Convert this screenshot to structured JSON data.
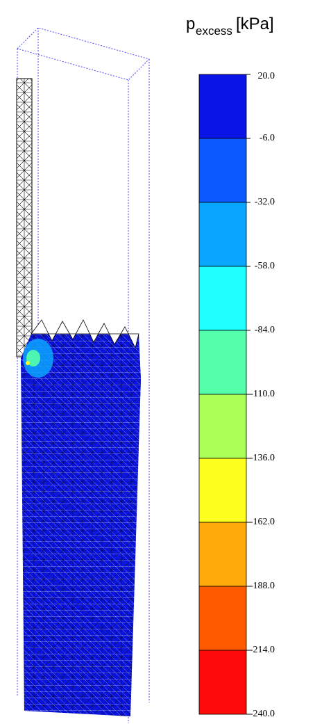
{
  "legend": {
    "title": "p",
    "title_sub": "excess",
    "unit": "[kPa]",
    "levels": [
      {
        "value": 20,
        "label": "20.0"
      },
      {
        "value": -6,
        "label": "-6.0"
      },
      {
        "value": -32,
        "label": "-32.0"
      },
      {
        "value": -58,
        "label": "-58.0"
      },
      {
        "value": -84,
        "label": "-84.0"
      },
      {
        "value": -110,
        "label": "-110.0"
      },
      {
        "value": -136,
        "label": "-136.0"
      },
      {
        "value": -162,
        "label": "-162.0"
      },
      {
        "value": -188,
        "label": "-188.0"
      },
      {
        "value": -214,
        "label": "-214.0"
      },
      {
        "value": -240,
        "label": "-240.0"
      }
    ],
    "colors": [
      "#0a14e6",
      "#0a5aff",
      "#0aa5ff",
      "#1effff",
      "#55ffaa",
      "#aaff55",
      "#ffff1e",
      "#ffaa0a",
      "#ff5a00",
      "#ff0a0a"
    ]
  }
}
